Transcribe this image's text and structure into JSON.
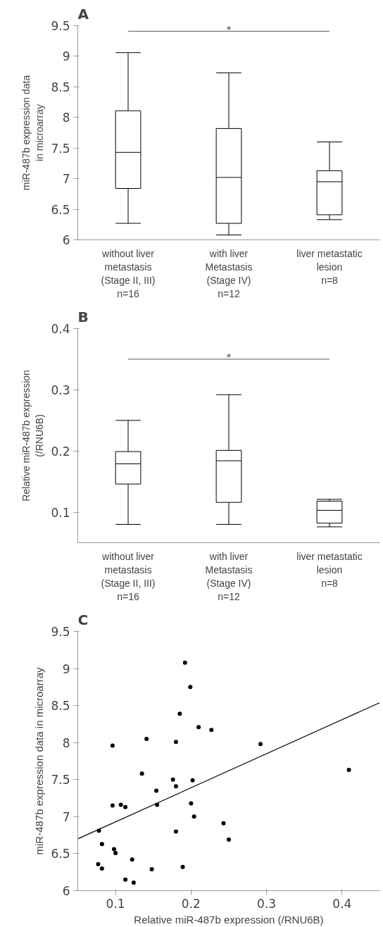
{
  "chart_data": [
    {
      "type": "box",
      "title": "A",
      "ylabel": "miR-487b expression data\nin microarray",
      "categories": [
        "without liver\nmetastasis\n(Stage II, III)\nn=16",
        "with liver\nMetastasis\n(Stage IV)\nn=12",
        "liver metastatic\nlesion\nn=8"
      ],
      "boxes": [
        {
          "low": 6.27,
          "q1": 6.84,
          "median": 7.43,
          "q3": 8.11,
          "high": 9.06
        },
        {
          "low": 6.08,
          "q1": 6.27,
          "median": 7.02,
          "q3": 7.82,
          "high": 8.73
        },
        {
          "low": 6.33,
          "q1": 6.41,
          "median": 6.95,
          "q3": 7.13,
          "high": 7.6
        }
      ],
      "ylim": [
        6,
        9.5
      ],
      "yticks": [
        6,
        6.5,
        7,
        7.5,
        8,
        8.5,
        9,
        9.5
      ],
      "ref_lines": [
        {
          "axis": "y",
          "value": 9.41,
          "label": "*",
          "color": "#777777"
        }
      ]
    },
    {
      "type": "box",
      "title": "B",
      "ylabel": "Relative miR-487b expression\n(/RNU6B)",
      "categories": [
        "without liver\nmetastasis\n(Stage II, III)\nn=16",
        "with liver\nMetastasis\n(Stage IV)\nn=12",
        "liver metastatic\nlesion\nn=8"
      ],
      "boxes": [
        {
          "low": 0.08,
          "q1": 0.146,
          "median": 0.179,
          "q3": 0.199,
          "high": 0.25
        },
        {
          "low": 0.08,
          "q1": 0.116,
          "median": 0.184,
          "q3": 0.201,
          "high": 0.292
        },
        {
          "low": 0.076,
          "q1": 0.082,
          "median": 0.103,
          "q3": 0.118,
          "high": 0.121
        }
      ],
      "ylim": [
        0.05,
        0.4
      ],
      "yticks": [
        0.1,
        0.2,
        0.3,
        0.4
      ],
      "ref_lines": [
        {
          "axis": "y",
          "value": 0.35,
          "label": "*",
          "color": "#777777"
        }
      ]
    },
    {
      "type": "scatter",
      "title": "C",
      "xlabel": "Relative miR-487b expression (/RNU6B)",
      "ylabel": "miR-487b expression data in microarray",
      "series": [
        {
          "type": "scatter",
          "marker": "circle",
          "color": "#000000",
          "x": [
            0.192,
            0.199,
            0.185,
            0.21,
            0.227,
            0.292,
            0.096,
            0.141,
            0.18,
            0.409,
            0.135,
            0.176,
            0.202,
            0.18,
            0.154,
            0.155,
            0.2,
            0.096,
            0.107,
            0.113,
            0.204,
            0.243,
            0.25,
            0.18,
            0.078,
            0.082,
            0.098,
            0.1,
            0.122,
            0.077,
            0.082,
            0.148,
            0.189,
            0.113,
            0.124
          ],
          "values": [
            9.08,
            8.75,
            8.39,
            8.21,
            8.17,
            7.98,
            7.96,
            8.05,
            8.01,
            7.63,
            7.58,
            7.5,
            7.49,
            7.41,
            7.35,
            7.16,
            7.18,
            7.15,
            7.16,
            7.13,
            7.0,
            6.91,
            6.69,
            6.8,
            6.81,
            6.63,
            6.56,
            6.51,
            6.42,
            6.36,
            6.3,
            6.29,
            6.32,
            6.15,
            6.11
          ]
        },
        {
          "type": "line",
          "color": "#000000",
          "x": [
            0.05,
            0.45
          ],
          "values": [
            6.7,
            8.54
          ]
        }
      ],
      "xlim": [
        0.05,
        0.45
      ],
      "xticks": [
        0.1,
        0.2,
        0.3,
        0.4
      ],
      "ylim": [
        6,
        9.5
      ],
      "yticks": [
        6,
        6.5,
        7,
        7.5,
        8,
        8.5,
        9,
        9.5
      ]
    }
  ]
}
